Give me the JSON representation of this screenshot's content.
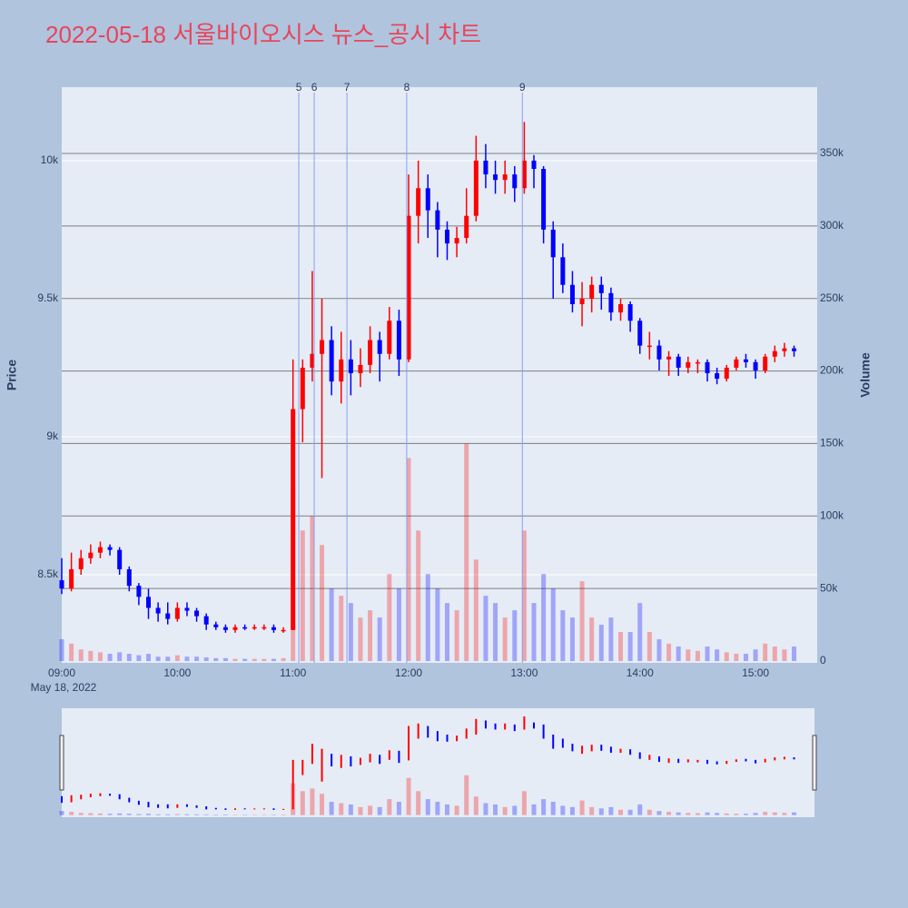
{
  "chart_data": {
    "type": "candlestick",
    "title": "2022-05-18 서울바이오시스 뉴스_공시 차트",
    "ylabel": "Price",
    "y2label": "Volume",
    "x_date": "May 18, 2022",
    "x": [
      "09:00",
      "09:05",
      "09:10",
      "09:15",
      "09:20",
      "09:25",
      "09:30",
      "09:35",
      "09:40",
      "09:45",
      "09:50",
      "09:55",
      "10:00",
      "10:05",
      "10:10",
      "10:15",
      "10:20",
      "10:25",
      "10:30",
      "10:35",
      "10:40",
      "10:45",
      "10:50",
      "10:55",
      "11:00",
      "11:05",
      "11:10",
      "11:15",
      "11:20",
      "11:25",
      "11:30",
      "11:35",
      "11:40",
      "11:45",
      "11:50",
      "11:55",
      "12:00",
      "12:05",
      "12:10",
      "12:15",
      "12:20",
      "12:25",
      "12:30",
      "12:35",
      "12:40",
      "12:45",
      "12:50",
      "12:55",
      "13:00",
      "13:05",
      "13:10",
      "13:15",
      "13:20",
      "13:25",
      "13:30",
      "13:35",
      "13:40",
      "13:45",
      "13:50",
      "13:55",
      "14:00",
      "14:05",
      "14:10",
      "14:15",
      "14:20",
      "14:25",
      "14:30",
      "14:35",
      "14:40",
      "14:45",
      "14:50",
      "14:55",
      "15:00",
      "15:05",
      "15:10",
      "15:15",
      "15:20"
    ],
    "open": [
      8480,
      8450,
      8520,
      8560,
      8580,
      8600,
      8590,
      8520,
      8460,
      8420,
      8380,
      8360,
      8340,
      8380,
      8370,
      8350,
      8320,
      8310,
      8300,
      8310,
      8305,
      8310,
      8310,
      8300,
      8300,
      9100,
      9250,
      9300,
      9350,
      9200,
      9280,
      9230,
      9260,
      9350,
      9300,
      9420,
      9280,
      9800,
      9900,
      9820,
      9750,
      9700,
      9720,
      9800,
      10000,
      9950,
      9930,
      9950,
      9900,
      10000,
      9970,
      9750,
      9650,
      9550,
      9480,
      9500,
      9550,
      9520,
      9450,
      9480,
      9420,
      9330,
      9330,
      9280,
      9290,
      9250,
      9270,
      9270,
      9230,
      9210,
      9250,
      9280,
      9270,
      9240,
      9290,
      9310,
      9320
    ],
    "high": [
      8560,
      8580,
      8590,
      8610,
      8620,
      8610,
      8600,
      8530,
      8470,
      8450,
      8400,
      8400,
      8400,
      8400,
      8380,
      8360,
      8330,
      8320,
      8320,
      8320,
      8320,
      8320,
      8320,
      8310,
      9280,
      9280,
      9600,
      9500,
      9400,
      9380,
      9350,
      9320,
      9400,
      9380,
      9470,
      9460,
      9950,
      10000,
      9950,
      9850,
      9780,
      9760,
      9900,
      10090,
      10060,
      10000,
      10000,
      9980,
      10140,
      10020,
      9980,
      9780,
      9700,
      9600,
      9560,
      9580,
      9580,
      9540,
      9500,
      9490,
      9430,
      9380,
      9350,
      9310,
      9300,
      9290,
      9280,
      9280,
      9250,
      9260,
      9290,
      9300,
      9280,
      9300,
      9330,
      9340,
      9330
    ],
    "low": [
      8430,
      8440,
      8500,
      8540,
      8560,
      8570,
      8500,
      8440,
      8390,
      8340,
      8330,
      8320,
      8330,
      8350,
      8330,
      8300,
      8300,
      8290,
      8290,
      8300,
      8300,
      8300,
      8290,
      8290,
      8300,
      8980,
      9200,
      8850,
      9150,
      9120,
      9150,
      9180,
      9230,
      9200,
      9280,
      9220,
      9270,
      9700,
      9720,
      9650,
      9640,
      9650,
      9700,
      9780,
      9900,
      9880,
      9880,
      9850,
      9880,
      9900,
      9700,
      9500,
      9520,
      9450,
      9400,
      9450,
      9460,
      9420,
      9420,
      9380,
      9300,
      9280,
      9240,
      9220,
      9220,
      9230,
      9230,
      9200,
      9190,
      9200,
      9240,
      9250,
      9210,
      9230,
      9270,
      9290,
      9290
    ],
    "close": [
      8450,
      8520,
      8560,
      8580,
      8600,
      8590,
      8520,
      8460,
      8420,
      8380,
      8360,
      8340,
      8380,
      8370,
      8350,
      8320,
      8310,
      8300,
      8310,
      8305,
      8310,
      8310,
      8300,
      8300,
      9100,
      9250,
      9300,
      9350,
      9200,
      9280,
      9230,
      9260,
      9350,
      9300,
      9420,
      9280,
      9800,
      9900,
      9820,
      9750,
      9700,
      9720,
      9800,
      10000,
      9950,
      9930,
      9950,
      9900,
      10000,
      9970,
      9750,
      9650,
      9550,
      9480,
      9500,
      9550,
      9520,
      9450,
      9480,
      9420,
      9330,
      9330,
      9280,
      9290,
      9250,
      9270,
      9270,
      9230,
      9210,
      9250,
      9280,
      9270,
      9240,
      9290,
      9310,
      9320,
      9310
    ],
    "volume": [
      15000,
      12000,
      8000,
      7000,
      6000,
      5000,
      6000,
      5000,
      4000,
      5000,
      3000,
      3000,
      4000,
      3000,
      3000,
      2500,
      2000,
      2000,
      1500,
      1500,
      1500,
      1500,
      1500,
      2000,
      120000,
      90000,
      100000,
      80000,
      50000,
      45000,
      40000,
      30000,
      35000,
      30000,
      60000,
      50000,
      140000,
      90000,
      60000,
      50000,
      40000,
      35000,
      150000,
      70000,
      45000,
      40000,
      30000,
      35000,
      90000,
      40000,
      60000,
      50000,
      35000,
      30000,
      55000,
      30000,
      25000,
      30000,
      20000,
      20000,
      40000,
      20000,
      15000,
      12000,
      10000,
      8000,
      7000,
      10000,
      8000,
      6000,
      5000,
      5000,
      8000,
      12000,
      10000,
      8000,
      10000
    ],
    "colors": {
      "increasing": "#ff0000",
      "decreasing": "#0000ff"
    },
    "xlim": [
      "09:00",
      "15:32"
    ],
    "xticks": [
      "09:00",
      "10:00",
      "11:00",
      "12:00",
      "13:00",
      "14:00",
      "15:00"
    ],
    "ylim": [
      8181,
      10266
    ],
    "yticks": [
      {
        "value": 8500,
        "label": "8.5k"
      },
      {
        "value": 9000,
        "label": "9k"
      },
      {
        "value": 9500,
        "label": "9.5k"
      },
      {
        "value": 10000,
        "label": "10k"
      }
    ],
    "y2lim": [
      -1250,
      395700
    ],
    "y2ticks": [
      0,
      {
        "value": 50000,
        "label": "50k"
      },
      {
        "value": 100000,
        "label": "100k"
      },
      {
        "value": 150000,
        "label": "150k"
      },
      {
        "value": 200000,
        "label": "200k"
      },
      {
        "value": 250000,
        "label": "250k"
      },
      {
        "value": 300000,
        "label": "300k"
      },
      {
        "value": 350000,
        "label": "350k"
      }
    ],
    "annotations": [
      {
        "x": "11:03",
        "label": "5"
      },
      {
        "x": "11:11",
        "label": "6"
      },
      {
        "x": "11:28",
        "label": "7"
      },
      {
        "x": "11:59",
        "label": "8"
      },
      {
        "x": "12:59",
        "label": "9"
      }
    ],
    "rangeslider": true
  }
}
